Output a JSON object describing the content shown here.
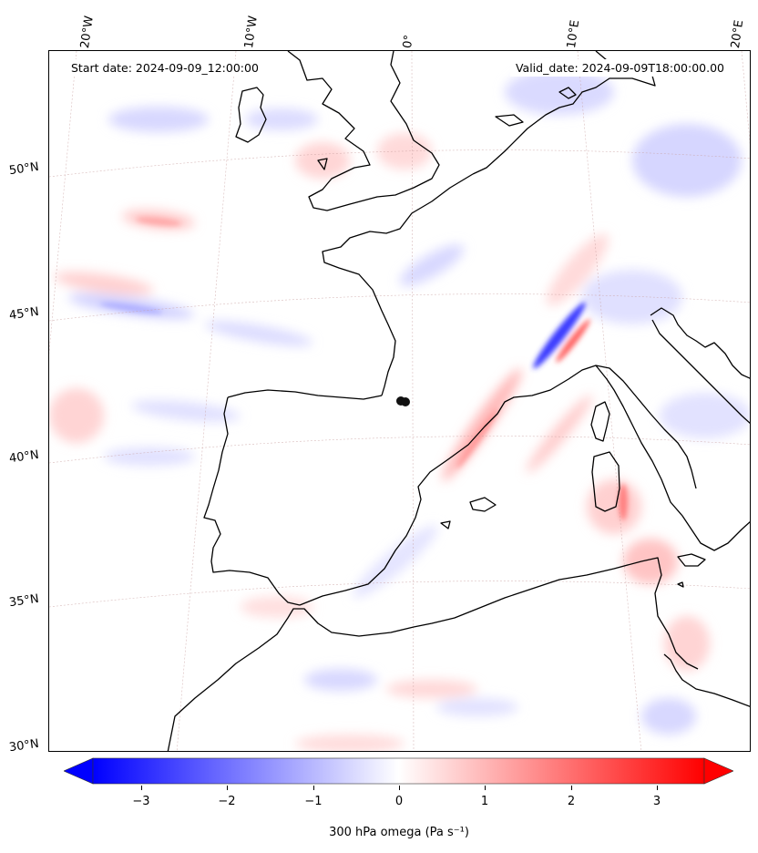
{
  "map": {
    "start_date": "Start date: 2024-09-09_12:00:00",
    "valid_date": "Valid_date: 2024-09-09T18:00:00.00"
  },
  "lon_labels": [
    "20°W",
    "10°W",
    "0°",
    "10°E",
    "20°E"
  ],
  "lat_labels": [
    "50°N",
    "45°N",
    "40°N",
    "35°N",
    "30°N"
  ],
  "colorbar": {
    "ticks": [
      "−3",
      "−2",
      "−1",
      "0",
      "1",
      "2",
      "3"
    ],
    "label": "300 hPa omega (Pa s⁻¹)",
    "cmap": [
      "#0000ff",
      "#ffffff",
      "#ff0000"
    ],
    "vmin": -3.6,
    "vmax": 3.6
  },
  "colors": {
    "coastline": "#000000",
    "gridline": "#c9a0a0",
    "marker": "#111111"
  }
}
